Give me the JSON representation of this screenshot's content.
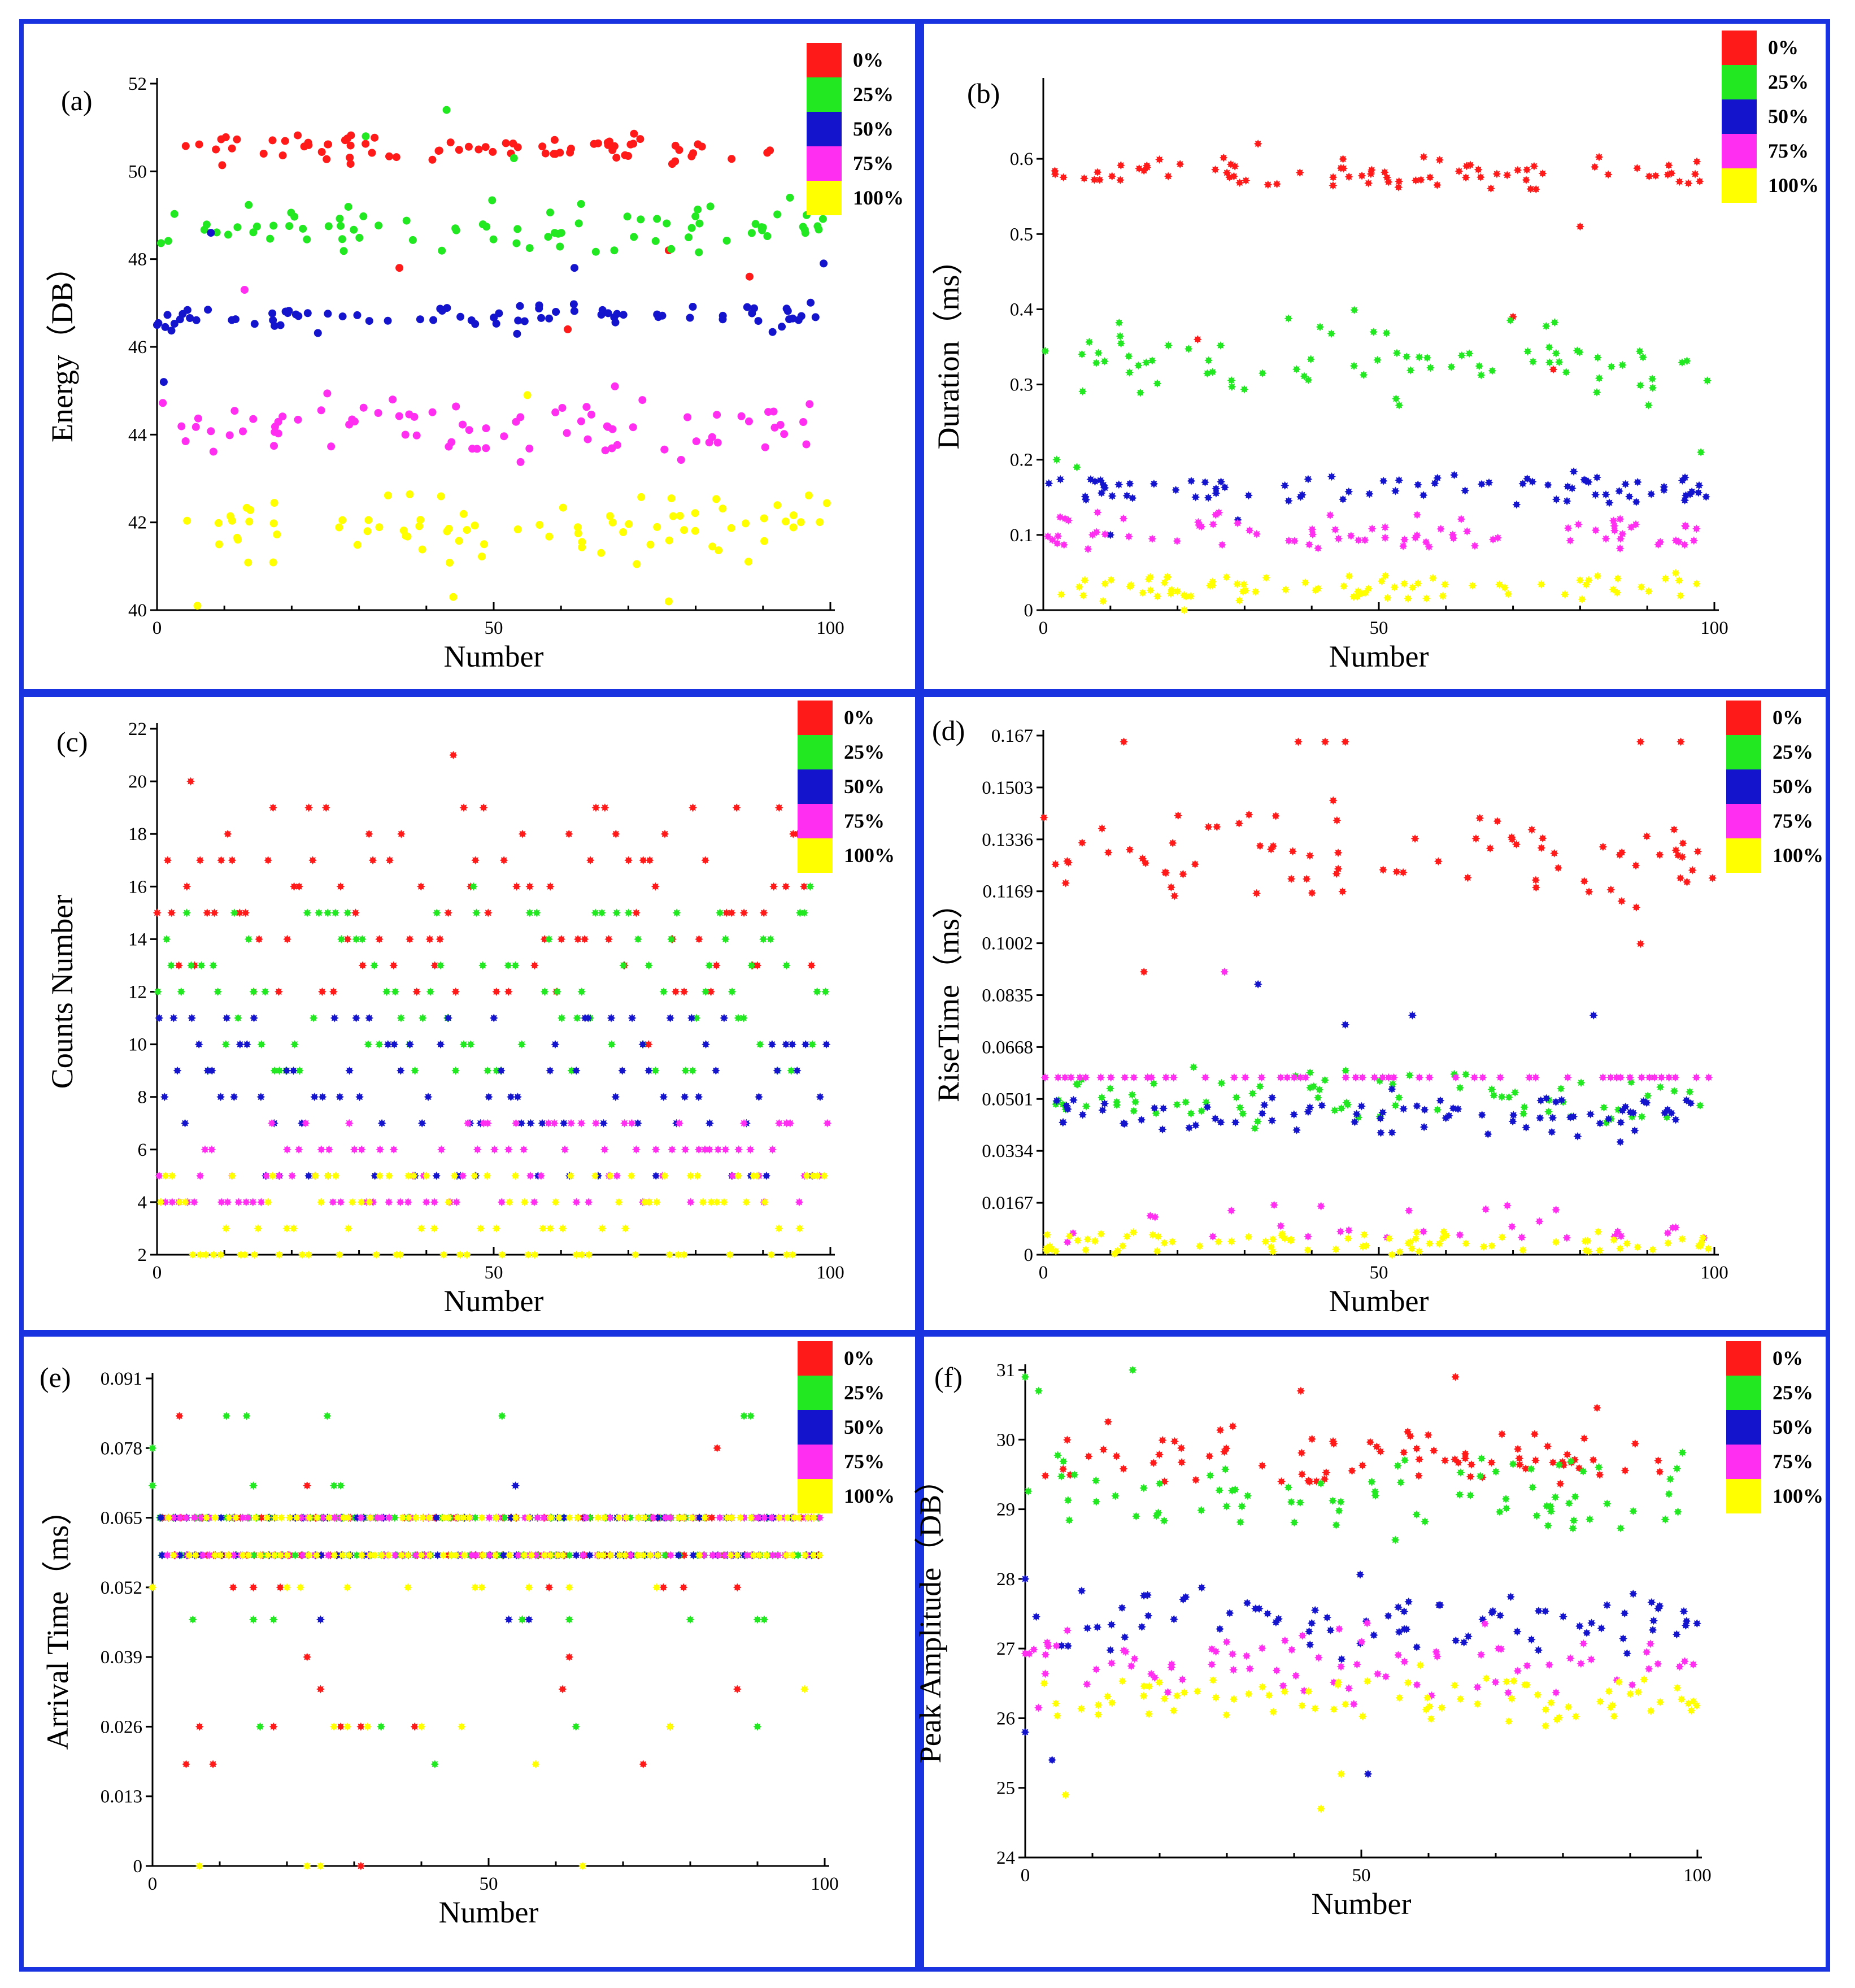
{
  "figure": {
    "series_colors": {
      "0%": "#ff1a1a",
      "25%": "#22e822",
      "50%": "#1414cc",
      "75%": "#ff2ef0",
      "100%": "#ffff00"
    },
    "frame_color": "#1a33e0"
  },
  "chart_data": [
    {
      "id": "a",
      "panel_label": "(a)",
      "type": "scatter",
      "xlabel": "Number",
      "ylabel": "Energy（DB）",
      "xlim": [
        0,
        100
      ],
      "ylim": [
        40,
        52
      ],
      "xticks": [
        0,
        50,
        100
      ],
      "xtick_labels": [
        "0",
        "50",
        "100"
      ],
      "yticks": [
        40,
        42,
        44,
        46,
        48,
        50,
        52
      ],
      "ytick_labels": [
        "40",
        "42",
        "44",
        "46",
        "48",
        "50",
        "52"
      ],
      "legend": [
        "0%",
        "25%",
        "50%",
        "75%",
        "100%"
      ],
      "series": [
        {
          "name": "0%",
          "center": 50.5,
          "spread": 0.3,
          "outliers": [
            [
              36,
              47.8
            ],
            [
              88,
              47.6
            ],
            [
              76,
              48.2
            ],
            [
              61,
              46.4
            ]
          ]
        },
        {
          "name": "25%",
          "center": 48.7,
          "spread": 0.5,
          "outliers": [
            [
              43,
              51.4
            ],
            [
              31,
              50.8
            ],
            [
              94,
              49.4
            ],
            [
              53,
              50.3
            ]
          ]
        },
        {
          "name": "50%",
          "center": 46.7,
          "spread": 0.3,
          "outliers": [
            [
              1,
              45.2
            ],
            [
              62,
              47.8
            ],
            [
              99,
              47.9
            ],
            [
              0,
              46.5
            ],
            [
              8,
              48.6
            ]
          ]
        },
        {
          "name": "75%",
          "center": 44.2,
          "spread": 0.6,
          "outliers": [
            [
              13,
              47.3
            ],
            [
              68,
              45.1
            ],
            [
              35,
              44.8
            ]
          ]
        },
        {
          "name": "100%",
          "center": 41.9,
          "spread": 0.7,
          "outliers": [
            [
              6,
              40.1
            ],
            [
              44,
              40.3
            ],
            [
              76,
              40.2
            ],
            [
              55,
              44.9
            ]
          ]
        }
      ]
    },
    {
      "id": "b",
      "panel_label": "(b)",
      "type": "scatter",
      "xlabel": "Number",
      "ylabel": "Duration（ms）",
      "xlim": [
        0,
        100
      ],
      "ylim": [
        0,
        0.7
      ],
      "xticks": [
        0,
        50,
        100
      ],
      "xtick_labels": [
        "0",
        "50",
        "100"
      ],
      "yticks": [
        0,
        0.1,
        0.2,
        0.3,
        0.4,
        0.5,
        0.6
      ],
      "ytick_labels": [
        "0",
        "0.1",
        "0.2",
        "0.3",
        "0.4",
        "0.5",
        "0.6"
      ],
      "legend": [
        "0%",
        "25%",
        "50%",
        "75%",
        "100%"
      ],
      "series": [
        {
          "name": "0%",
          "center": 0.58,
          "spread": 0.018,
          "outliers": [
            [
              80,
              0.51
            ],
            [
              32,
              0.62
            ],
            [
              70,
              0.39
            ],
            [
              76,
              0.32
            ],
            [
              23,
              0.36
            ]
          ]
        },
        {
          "name": "25%",
          "center": 0.33,
          "spread": 0.05,
          "outliers": [
            [
              2,
              0.2
            ],
            [
              5,
              0.19
            ],
            [
              98,
              0.21
            ]
          ]
        },
        {
          "name": "50%",
          "center": 0.16,
          "spread": 0.02,
          "outliers": [
            [
              10,
              0.1
            ],
            [
              29,
              0.12
            ]
          ]
        },
        {
          "name": "75%",
          "center": 0.1,
          "spread": 0.025,
          "outliers": []
        },
        {
          "name": "100%",
          "center": 0.03,
          "spread": 0.018,
          "outliers": [
            [
              21,
              0.0
            ]
          ]
        }
      ]
    },
    {
      "id": "c",
      "panel_label": "(c)",
      "type": "scatter",
      "xlabel": "Number",
      "ylabel": "Counts Number",
      "xlim": [
        0,
        100
      ],
      "ylim": [
        2,
        22
      ],
      "xticks": [
        0,
        50,
        100
      ],
      "xtick_labels": [
        "0",
        "50",
        "100"
      ],
      "yticks": [
        2,
        4,
        6,
        8,
        10,
        12,
        14,
        16,
        18,
        20,
        22
      ],
      "ytick_labels": [
        "2",
        "4",
        "6",
        "8",
        "10",
        "12",
        "14",
        "16",
        "18",
        "20",
        "22"
      ],
      "legend": [
        "0%",
        "25%",
        "50%",
        "75%",
        "100%"
      ],
      "series": [
        {
          "name": "0%",
          "levels": [
            12,
            13,
            14,
            15,
            16,
            17,
            18,
            19
          ],
          "outliers": [
            [
              44,
              21
            ],
            [
              5,
              20
            ],
            [
              73,
              10
            ]
          ]
        },
        {
          "name": "25%",
          "levels": [
            9,
            10,
            11,
            12,
            13,
            14,
            15
          ],
          "outliers": [
            [
              47,
              16
            ],
            [
              97,
              16
            ]
          ]
        },
        {
          "name": "50%",
          "levels": [
            5,
            7,
            8,
            9,
            10,
            11
          ],
          "outliers": []
        },
        {
          "name": "75%",
          "levels": [
            4,
            5,
            6,
            7
          ],
          "outliers": []
        },
        {
          "name": "100%",
          "levels": [
            2,
            3,
            4,
            5
          ],
          "outliers": []
        }
      ]
    },
    {
      "id": "d",
      "panel_label": "(d)",
      "type": "scatter",
      "xlabel": "Number",
      "ylabel": "RiseTime（ms）",
      "xlim": [
        0,
        100
      ],
      "ylim": [
        0,
        0.167
      ],
      "xticks": [
        0,
        50,
        100
      ],
      "xtick_labels": [
        "0",
        "50",
        "100"
      ],
      "yticks": [
        0,
        0.0167,
        0.0334,
        0.0501,
        0.0668,
        0.0835,
        0.1002,
        0.1169,
        0.1336,
        0.1503,
        0.167
      ],
      "ytick_labels": [
        "0",
        "0.0167",
        "0.0334",
        "0.0501",
        "0.0668",
        "0.0835",
        "0.1002",
        "0.1169",
        "0.1336",
        "0.1503",
        "0.167"
      ],
      "legend": [
        "0%",
        "25%",
        "50%",
        "75%",
        "100%"
      ],
      "series": [
        {
          "name": "0%",
          "center": 0.13,
          "spread": 0.016,
          "outliers": [
            [
              12,
              0.165
            ],
            [
              38,
              0.165
            ],
            [
              42,
              0.165
            ],
            [
              45,
              0.165
            ],
            [
              89,
              0.165
            ],
            [
              95,
              0.165
            ],
            [
              15,
              0.091
            ],
            [
              89,
              0.1
            ]
          ]
        },
        {
          "name": "25%",
          "center": 0.05,
          "spread": 0.009,
          "outliers": []
        },
        {
          "name": "50%",
          "center": 0.045,
          "spread": 0.007,
          "outliers": [
            [
              32,
              0.087
            ],
            [
              45,
              0.074
            ],
            [
              55,
              0.077
            ],
            [
              82,
              0.077
            ]
          ]
        },
        {
          "name": "75%",
          "center": 0.057,
          "spread": 0.0,
          "outliers": [
            [
              27,
              0.091
            ]
          ]
        },
        {
          "name": "100%",
          "center": 0.004,
          "spread": 0.004,
          "outliers": []
        }
      ]
    },
    {
      "id": "e",
      "panel_label": "(e)",
      "type": "scatter",
      "xlabel": "Number",
      "ylabel": "Arrival Time（ms）",
      "xlim": [
        0,
        100
      ],
      "ylim": [
        0,
        0.091
      ],
      "xticks": [
        0,
        50,
        100
      ],
      "xtick_labels": [
        "0",
        "50",
        "100"
      ],
      "yticks": [
        0,
        0.013,
        0.026,
        0.039,
        0.052,
        0.065,
        0.078,
        0.091
      ],
      "ytick_labels": [
        "0",
        "0.013",
        "0.026",
        "0.039",
        "0.052",
        "0.065",
        "0.078",
        "0.091"
      ],
      "legend": [
        "0%",
        "25%",
        "50%",
        "75%",
        "100%"
      ],
      "bands": [
        0.065,
        0.058
      ],
      "series": [
        {
          "name": "0%",
          "outliers": [
            [
              4,
              0.084
            ],
            [
              23,
              0.071
            ],
            [
              84,
              0.078
            ],
            [
              23,
              0.039
            ],
            [
              25,
              0.033
            ],
            [
              12,
              0.052
            ],
            [
              15,
              0.052
            ],
            [
              19,
              0.052
            ],
            [
              5,
              0.019
            ],
            [
              7,
              0.026
            ],
            [
              9,
              0.019
            ],
            [
              18,
              0.026
            ],
            [
              28,
              0.026
            ],
            [
              31,
              0.026
            ],
            [
              39,
              0.026
            ],
            [
              55,
              0.046
            ],
            [
              59,
              0.052
            ],
            [
              61,
              0.033
            ],
            [
              73,
              0.019
            ],
            [
              77,
              0.026
            ],
            [
              79,
              0.052
            ],
            [
              87,
              0.033
            ],
            [
              31,
              0.0
            ],
            [
              62,
              0.039
            ],
            [
              87,
              0.052
            ],
            [
              76,
              0.052
            ]
          ]
        },
        {
          "name": "25%",
          "outliers": [
            [
              0,
              0.078
            ],
            [
              0,
              0.071
            ],
            [
              11,
              0.084
            ],
            [
              14,
              0.084
            ],
            [
              26,
              0.084
            ],
            [
              52,
              0.084
            ],
            [
              88,
              0.084
            ],
            [
              89,
              0.084
            ],
            [
              15,
              0.071
            ],
            [
              27,
              0.071
            ],
            [
              28,
              0.071
            ],
            [
              6,
              0.046
            ],
            [
              15,
              0.046
            ],
            [
              18,
              0.046
            ],
            [
              16,
              0.026
            ],
            [
              34,
              0.026
            ],
            [
              42,
              0.019
            ],
            [
              62,
              0.046
            ],
            [
              55,
              0.046
            ],
            [
              63,
              0.026
            ],
            [
              80,
              0.046
            ],
            [
              90,
              0.046
            ],
            [
              91,
              0.046
            ],
            [
              90,
              0.026
            ]
          ]
        },
        {
          "name": "50%",
          "outliers": [
            [
              54,
              0.071
            ],
            [
              25,
              0.046
            ],
            [
              53,
              0.046
            ],
            [
              56,
              0.046
            ]
          ]
        },
        {
          "name": "75%",
          "outliers": []
        },
        {
          "name": "100%",
          "outliers": [
            [
              0,
              0.052
            ],
            [
              20,
              0.052
            ],
            [
              22,
              0.052
            ],
            [
              29,
              0.052
            ],
            [
              38,
              0.052
            ],
            [
              48,
              0.052
            ],
            [
              49,
              0.052
            ],
            [
              56,
              0.052
            ],
            [
              62,
              0.052
            ],
            [
              75,
              0.052
            ],
            [
              27,
              0.026
            ],
            [
              29,
              0.026
            ],
            [
              32,
              0.026
            ],
            [
              40,
              0.026
            ],
            [
              46,
              0.026
            ],
            [
              57,
              0.019
            ],
            [
              77,
              0.026
            ],
            [
              97,
              0.033
            ],
            [
              7,
              0.0
            ],
            [
              23,
              0.0
            ],
            [
              25,
              0.0
            ],
            [
              64,
              0.0
            ]
          ]
        }
      ]
    },
    {
      "id": "f",
      "panel_label": "(f)",
      "type": "scatter",
      "xlabel": "Number",
      "ylabel": "Peak Amplitude（DB）",
      "xlim": [
        0,
        100
      ],
      "ylim": [
        24,
        31
      ],
      "xticks": [
        0,
        50,
        100
      ],
      "xtick_labels": [
        "0",
        "50",
        "100"
      ],
      "yticks": [
        24,
        25,
        26,
        27,
        28,
        29,
        30,
        31
      ],
      "ytick_labels": [
        "24",
        "25",
        "26",
        "27",
        "28",
        "29",
        "30",
        "31"
      ],
      "legend": [
        "0%",
        "25%",
        "50%",
        "75%",
        "100%"
      ],
      "series": [
        {
          "name": "0%",
          "center": 29.7,
          "spread": 0.5,
          "outliers": [
            [
              64,
              30.9
            ],
            [
              41,
              30.7
            ]
          ]
        },
        {
          "name": "25%",
          "center": 29.2,
          "spread": 0.55,
          "outliers": [
            [
              0,
              30.9
            ],
            [
              16,
              31.0
            ],
            [
              2,
              30.7
            ]
          ]
        },
        {
          "name": "50%",
          "center": 27.4,
          "spread": 0.5,
          "outliers": [
            [
              0,
              25.8
            ],
            [
              4,
              25.4
            ],
            [
              51,
              25.2
            ],
            [
              0,
              28.0
            ]
          ]
        },
        {
          "name": "75%",
          "center": 26.8,
          "spread": 0.45,
          "outliers": []
        },
        {
          "name": "100%",
          "center": 26.3,
          "spread": 0.35,
          "outliers": [
            [
              44,
              24.7
            ],
            [
              6,
              24.9
            ],
            [
              47,
              25.2
            ]
          ]
        }
      ]
    }
  ]
}
